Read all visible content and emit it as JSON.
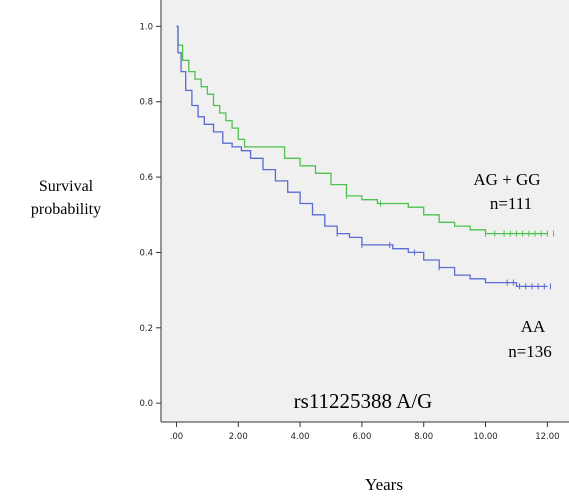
{
  "chart_data": {
    "type": "line",
    "title": "",
    "xlabel": "Years",
    "ylabel_lines": [
      "Survival",
      "probability"
    ],
    "xlim": [
      -0.5,
      12.7
    ],
    "ylim": [
      -0.05,
      1.07
    ],
    "x_ticks": [
      0,
      2,
      4,
      6,
      8,
      10,
      12
    ],
    "x_tick_labels": [
      ".00",
      "2.00",
      "4.00",
      "6.00",
      "8.00",
      "10.00",
      "12.00"
    ],
    "y_ticks": [
      0,
      0.2,
      0.4,
      0.6,
      0.8,
      1.0
    ],
    "y_tick_labels": [
      "0.0",
      "0.2",
      "0.4",
      "0.6",
      "0.8",
      "1.0"
    ],
    "annotation": "rs11225388 A/G",
    "colors": {
      "plot_bg": "#f0f0f0",
      "green": "#4ec24e",
      "blue": "#5b6bd3"
    },
    "series": [
      {
        "label_lines": [
          "AG + GG",
          "n=111"
        ],
        "color": "#4ec24e",
        "x": [
          0,
          0.05,
          0.2,
          0.4,
          0.6,
          0.8,
          1.0,
          1.2,
          1.4,
          1.6,
          1.8,
          2.0,
          2.2,
          2.5,
          3.0,
          3.5,
          4.0,
          4.5,
          5.0,
          5.5,
          6.0,
          6.5,
          7.0,
          7.5,
          8.0,
          8.5,
          9.0,
          9.5,
          10.0,
          10.5,
          11.0,
          11.5,
          12.0
        ],
        "y": [
          1.0,
          0.95,
          0.91,
          0.88,
          0.86,
          0.84,
          0.82,
          0.79,
          0.77,
          0.75,
          0.73,
          0.7,
          0.68,
          0.68,
          0.68,
          0.65,
          0.63,
          0.61,
          0.58,
          0.55,
          0.54,
          0.53,
          0.53,
          0.52,
          0.5,
          0.48,
          0.47,
          0.46,
          0.45,
          0.45,
          0.45,
          0.45,
          0.45
        ],
        "censored": [
          5.5,
          6.6,
          10.0,
          10.3,
          10.6,
          10.8,
          11.0,
          11.2,
          11.4,
          11.6,
          11.8,
          12.0,
          12.2
        ]
      },
      {
        "label_lines": [
          "AA",
          "n=136"
        ],
        "color": "#5b6bd3",
        "x": [
          0,
          0.05,
          0.15,
          0.3,
          0.5,
          0.7,
          0.9,
          1.2,
          1.5,
          1.8,
          2.1,
          2.4,
          2.8,
          3.2,
          3.6,
          4.0,
          4.4,
          4.8,
          5.2,
          5.6,
          6.0,
          6.5,
          7.0,
          7.5,
          8.0,
          8.5,
          9.0,
          9.5,
          10.0,
          10.5,
          11.0,
          11.5,
          12.0
        ],
        "y": [
          1.0,
          0.93,
          0.88,
          0.83,
          0.79,
          0.76,
          0.74,
          0.72,
          0.69,
          0.68,
          0.67,
          0.65,
          0.62,
          0.59,
          0.56,
          0.53,
          0.5,
          0.47,
          0.45,
          0.44,
          0.42,
          0.42,
          0.41,
          0.4,
          0.38,
          0.36,
          0.34,
          0.33,
          0.32,
          0.32,
          0.31,
          0.31,
          0.31
        ],
        "censored": [
          5.2,
          6.0,
          6.9,
          7.7,
          8.5,
          10.7,
          10.9,
          11.1,
          11.3,
          11.5,
          11.7,
          11.9,
          12.1
        ]
      }
    ]
  }
}
